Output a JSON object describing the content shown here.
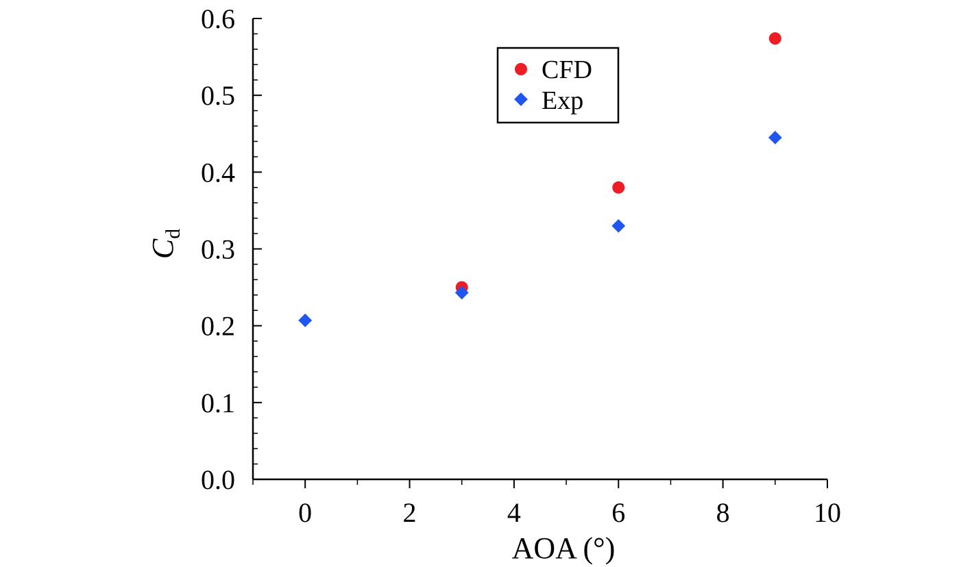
{
  "chart_data": {
    "type": "scatter",
    "xlabel": "AOA (°)",
    "ylabel_main": "C",
    "ylabel_sub": "d",
    "xlim": [
      -1,
      10
    ],
    "ylim": [
      0,
      0.6
    ],
    "x_ticks": [
      0,
      2,
      4,
      6,
      8,
      10
    ],
    "x_tick_labels": [
      "0",
      "2",
      "4",
      "6",
      "8",
      "10"
    ],
    "y_ticks": [
      0,
      0.1,
      0.2,
      0.3,
      0.4,
      0.5,
      0.6
    ],
    "y_tick_labels": [
      "0.0",
      "0.1",
      "0.2",
      "0.3",
      "0.4",
      "0.5",
      "0.6"
    ],
    "grid": false,
    "legend_position": "top-center",
    "series": [
      {
        "name": "CFD",
        "marker": "circle",
        "color": "#ee1c24",
        "x": [
          3,
          6,
          9
        ],
        "y": [
          0.25,
          0.38,
          0.574
        ]
      },
      {
        "name": "Exp",
        "marker": "diamond",
        "color": "#1f55f0",
        "x": [
          0,
          3,
          6,
          9
        ],
        "y": [
          0.207,
          0.243,
          0.33,
          0.445
        ]
      }
    ]
  }
}
